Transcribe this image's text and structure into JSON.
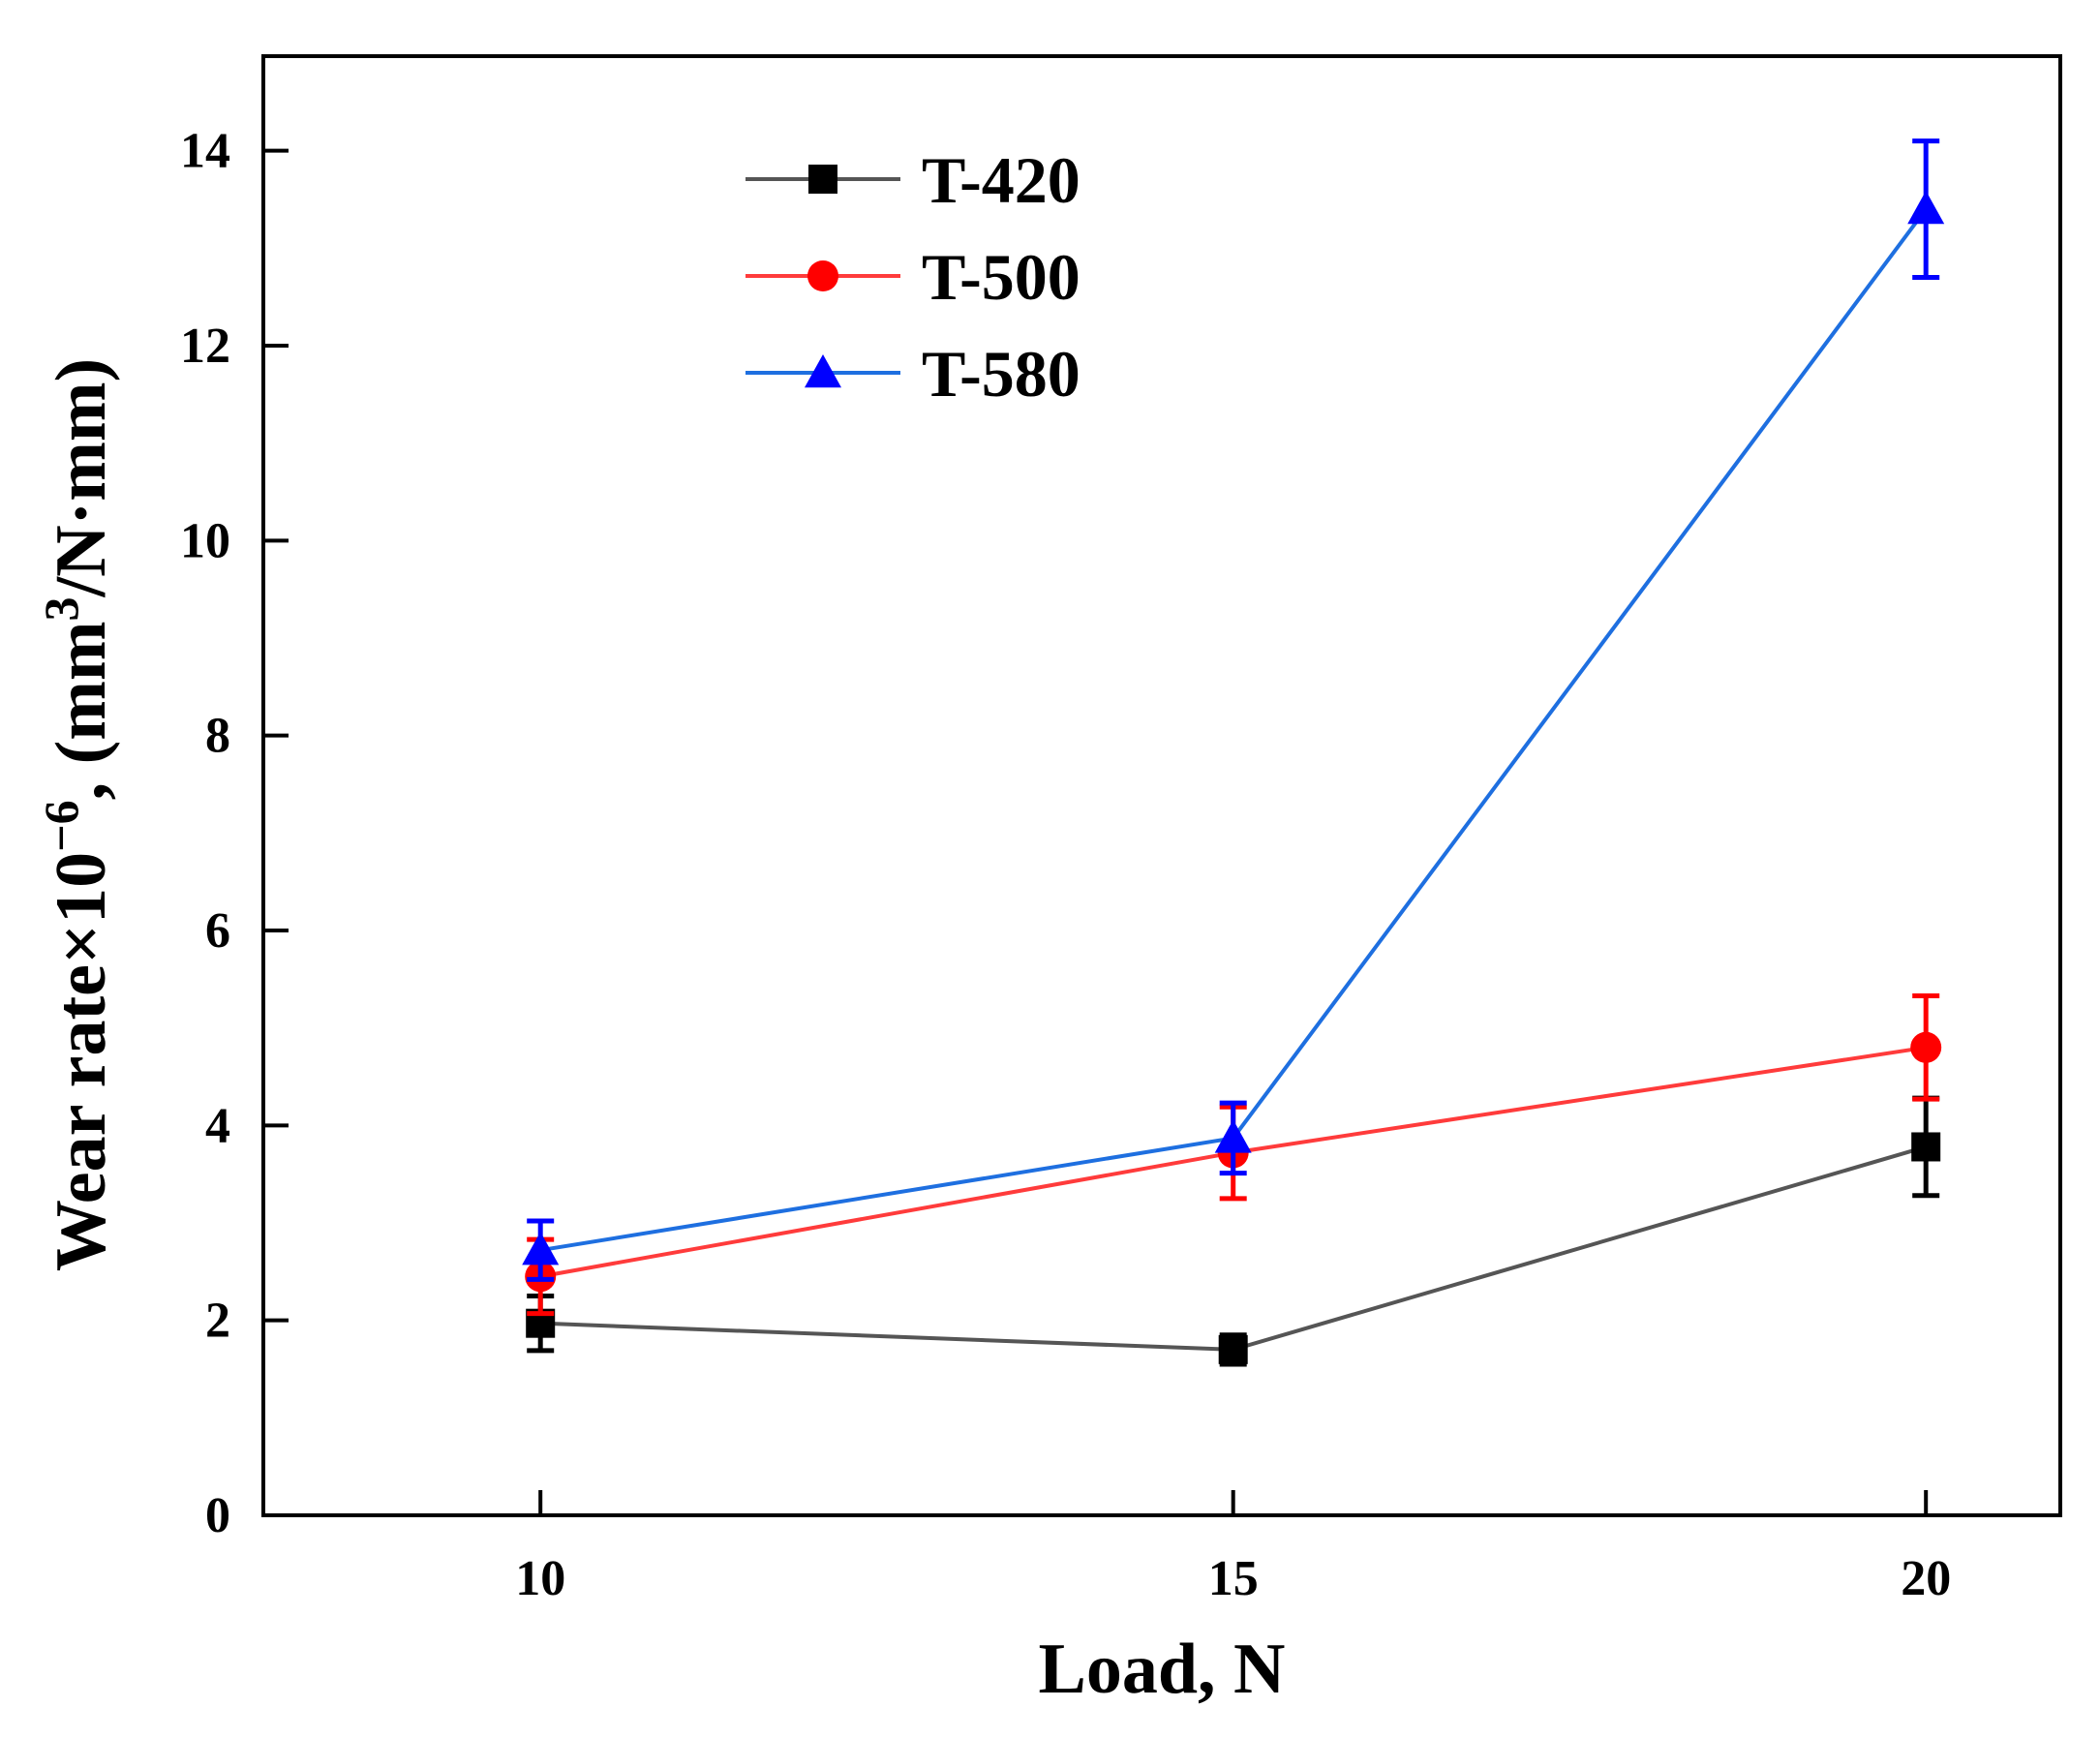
{
  "chart_data": {
    "type": "line",
    "title": "",
    "xlabel": "Load, N",
    "ylabel": {
      "base": "Wear rate×10",
      "exp": "−6",
      "middle": ", (mm",
      "unit_exp": "3",
      "end": "/N·mm)"
    },
    "x": [
      10,
      15,
      20
    ],
    "xlim": [
      8.0,
      20.97
    ],
    "ylim": [
      0,
      14.97
    ],
    "xticks": [
      "10",
      "15",
      "20"
    ],
    "yticks": [
      "0",
      "2",
      "4",
      "6",
      "8",
      "10",
      "12",
      "14"
    ],
    "grid": false,
    "legend_position": "top-left",
    "series": [
      {
        "name": "T-420",
        "marker": "square",
        "line_color": "#555555",
        "marker_color": "#000000",
        "error_color": "#000000",
        "values": [
          1.97,
          1.7,
          3.78
        ],
        "errors": [
          0.28,
          0.15,
          0.5
        ]
      },
      {
        "name": "T-500",
        "marker": "circle",
        "line_color": "#ff3b3b",
        "marker_color": "#ff0000",
        "error_color": "#ff0000",
        "values": [
          2.45,
          3.72,
          4.8
        ],
        "errors": [
          0.38,
          0.47,
          0.53
        ]
      },
      {
        "name": "T-580",
        "marker": "triangle",
        "line_color": "#1e6fe0",
        "marker_color": "#0000ff",
        "error_color": "#0000ff",
        "values": [
          2.72,
          3.87,
          13.4
        ],
        "errors": [
          0.3,
          0.36,
          0.7
        ]
      }
    ]
  }
}
